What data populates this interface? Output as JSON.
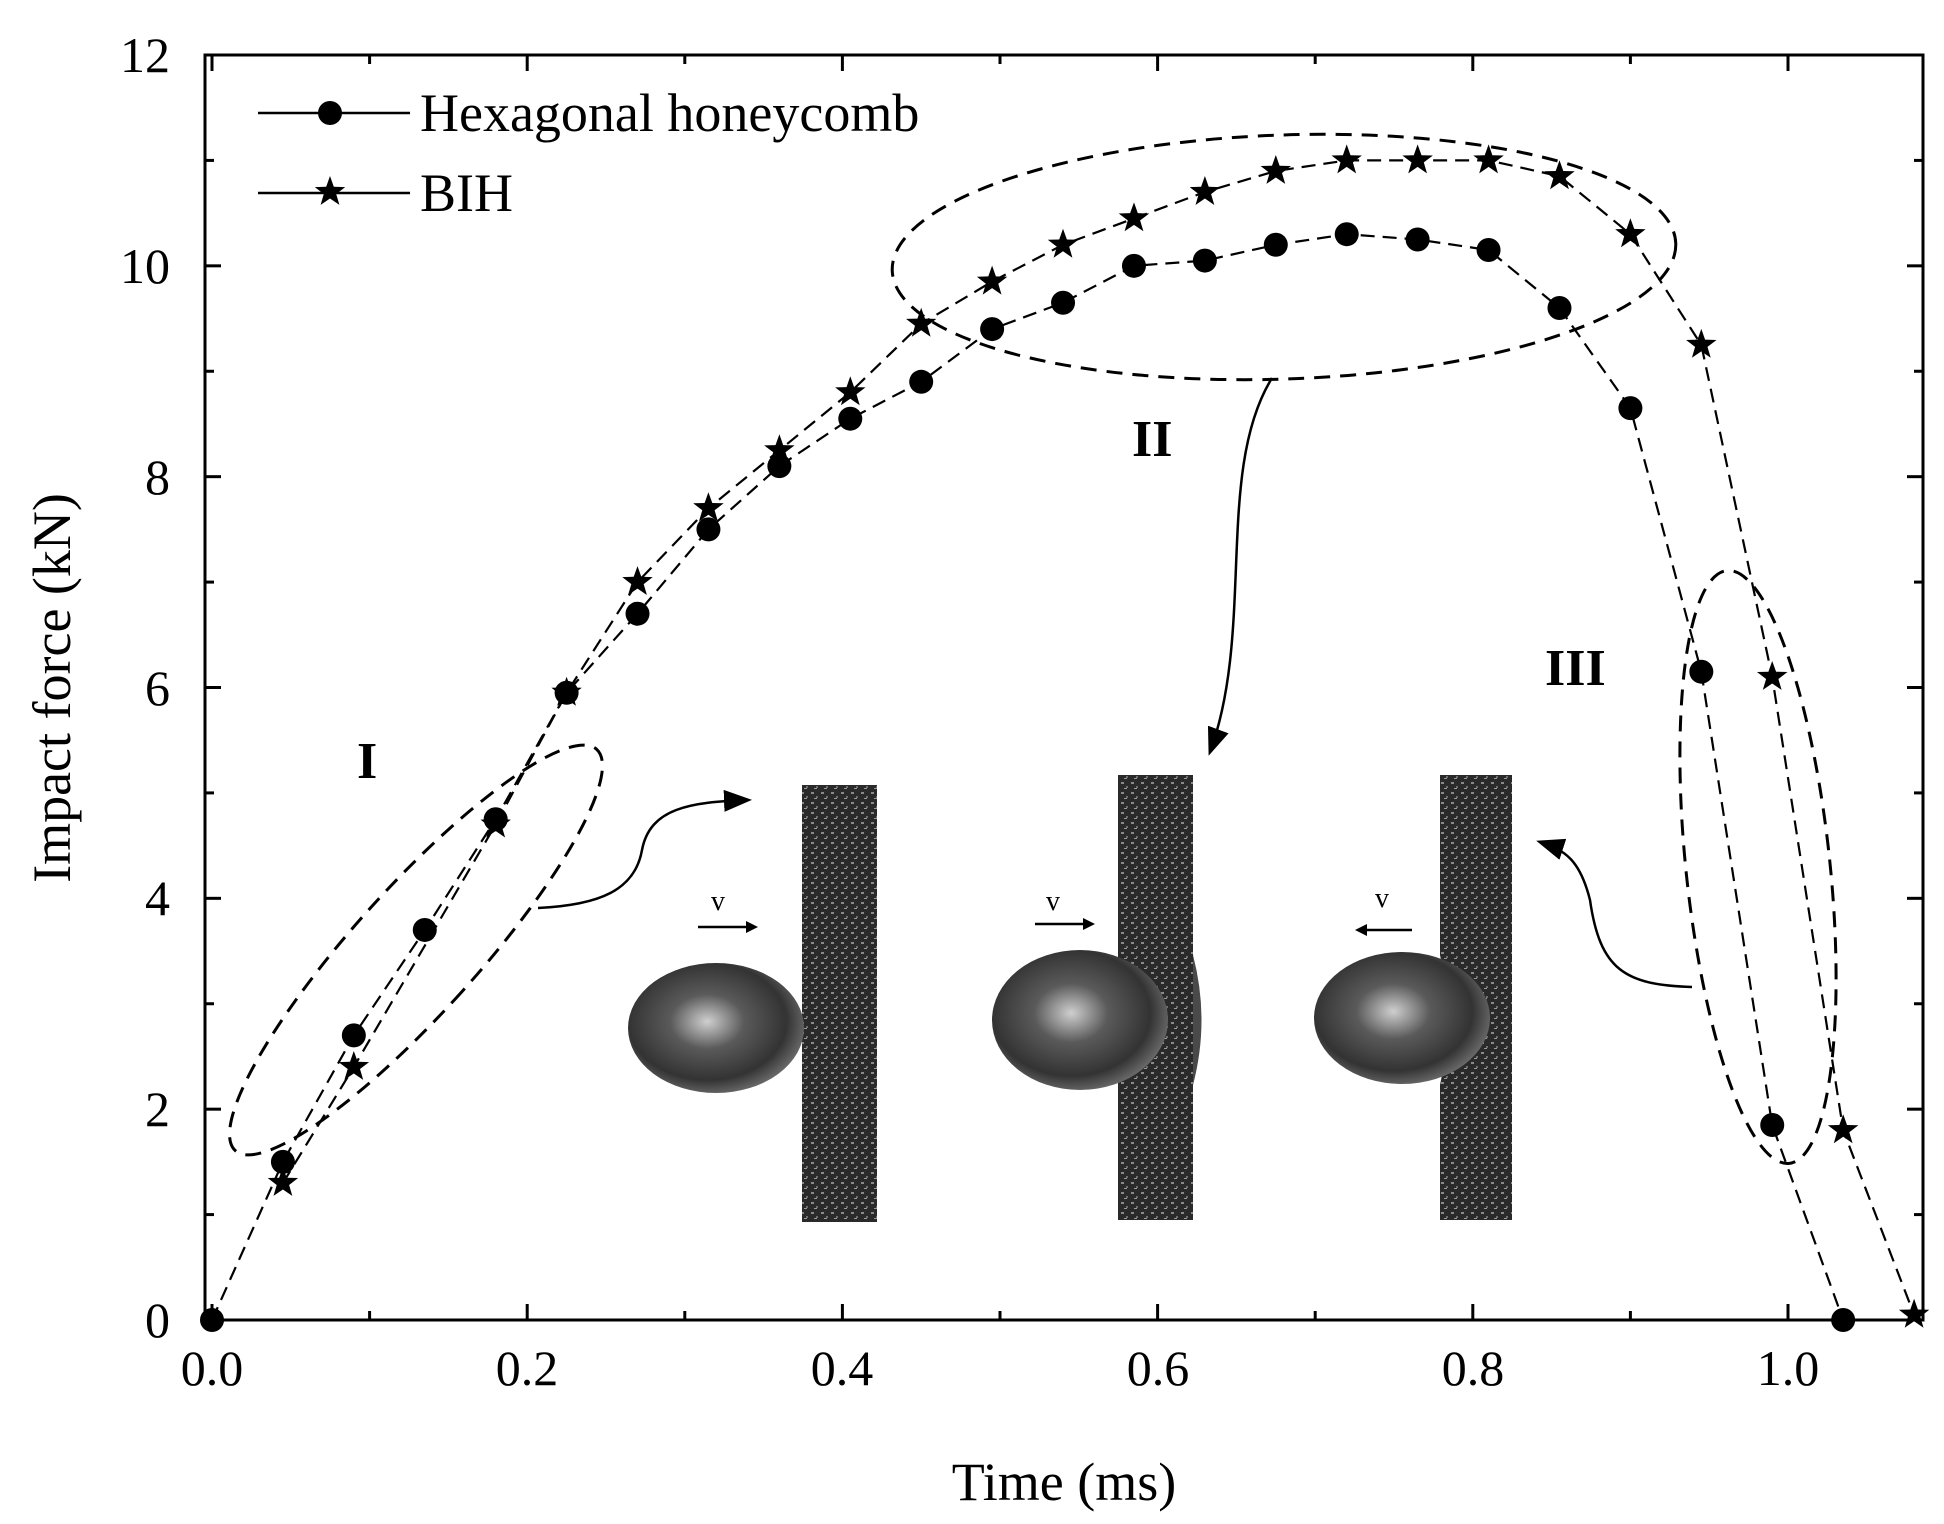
{
  "chart_data": {
    "type": "line",
    "xlabel": "Time (ms)",
    "ylabel": "Impact force (kN)",
    "xlim": [
      0.0,
      1.08
    ],
    "ylim": [
      0,
      12
    ],
    "xticks": [
      "0.0",
      "0.2",
      "0.4",
      "0.6",
      "0.8",
      "1.0"
    ],
    "yticks": [
      "0",
      "2",
      "4",
      "6",
      "8",
      "10",
      "12"
    ],
    "grid": false,
    "legend_position": "top-left",
    "series": [
      {
        "name": "Hexagonal honeycomb",
        "marker": "circle",
        "line_style": "dashed",
        "x": [
          0.0,
          0.045,
          0.09,
          0.135,
          0.18,
          0.225,
          0.27,
          0.315,
          0.36,
          0.405,
          0.45,
          0.495,
          0.54,
          0.585,
          0.63,
          0.675,
          0.72,
          0.765,
          0.81,
          0.855,
          0.9,
          0.945,
          0.99,
          1.035
        ],
        "values": [
          0.0,
          1.5,
          2.7,
          3.7,
          4.75,
          5.95,
          6.7,
          7.5,
          8.1,
          8.55,
          8.9,
          9.4,
          9.65,
          10.0,
          10.05,
          10.2,
          10.3,
          10.25,
          10.15,
          9.6,
          8.65,
          6.15,
          1.85,
          0.0
        ]
      },
      {
        "name": "BIH",
        "marker": "star",
        "line_style": "dashed",
        "x": [
          0.045,
          0.09,
          0.18,
          0.225,
          0.27,
          0.315,
          0.36,
          0.405,
          0.45,
          0.495,
          0.54,
          0.585,
          0.63,
          0.675,
          0.72,
          0.765,
          0.81,
          0.855,
          0.9,
          0.945,
          0.99,
          1.035,
          1.08
        ],
        "values": [
          1.3,
          2.4,
          4.7,
          5.95,
          7.0,
          7.7,
          8.25,
          8.8,
          9.45,
          9.85,
          10.2,
          10.45,
          10.7,
          10.9,
          11.0,
          11.0,
          11.0,
          10.85,
          10.3,
          9.25,
          6.1,
          1.8,
          0.05
        ]
      }
    ],
    "annotations": [
      "I",
      "II",
      "III"
    ],
    "inset_labels": [
      "v",
      "v",
      "v"
    ]
  }
}
